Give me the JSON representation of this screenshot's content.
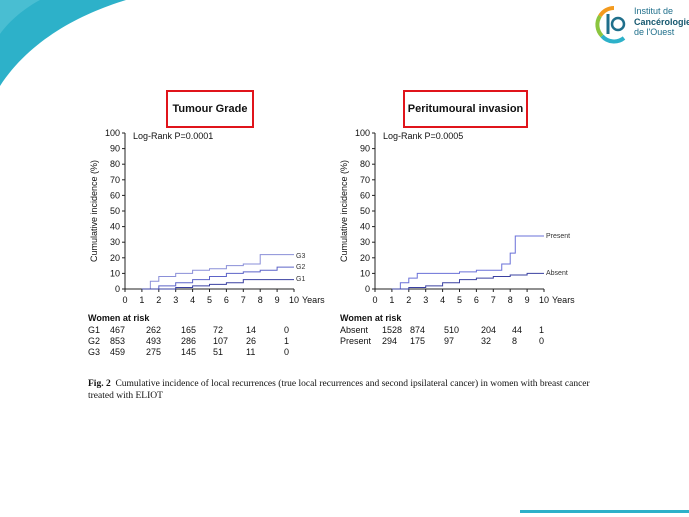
{
  "logo": {
    "lines": [
      "Institut de",
      "Cancérologie",
      "de l'Ouest"
    ],
    "colors": [
      "#f39a1e",
      "#8bc53f",
      "#2db1c9",
      "#1f6f8b"
    ]
  },
  "panels": {
    "left": {
      "title": "Tumour Grade",
      "logrank": "Log-Rank  P=0.0001"
    },
    "right": {
      "title": "Peritumoural invasion",
      "logrank": "Log-Rank  P=0.0005"
    }
  },
  "chart_data": [
    {
      "type": "line",
      "title": "Tumour Grade",
      "annotation": "Log-Rank  P=0.0001",
      "xlabel": "Years",
      "ylabel": "Cumulative incidence (%)",
      "xlim": [
        0,
        10
      ],
      "ylim": [
        0,
        100
      ],
      "xticks": [
        0,
        1,
        2,
        3,
        4,
        5,
        6,
        7,
        8,
        9,
        10
      ],
      "yticks": [
        0,
        10,
        20,
        30,
        40,
        50,
        60,
        70,
        80,
        90,
        100
      ],
      "series": [
        {
          "name": "G3",
          "x": [
            1,
            1.5,
            2,
            3,
            4,
            5,
            6,
            7,
            8,
            10
          ],
          "y": [
            0,
            5,
            8,
            10,
            12,
            13,
            15,
            16,
            22,
            22
          ]
        },
        {
          "name": "G2",
          "x": [
            1,
            2,
            3,
            4,
            5,
            6,
            7,
            8,
            9,
            10
          ],
          "y": [
            0,
            2,
            4,
            6,
            8,
            10,
            11,
            12,
            14,
            14
          ]
        },
        {
          "name": "G1",
          "x": [
            1,
            2,
            3,
            4,
            5,
            6,
            7,
            8,
            10
          ],
          "y": [
            0,
            0,
            1,
            2,
            3,
            4,
            6,
            6,
            6
          ]
        }
      ],
      "risk_table": {
        "header": "Women at risk",
        "rows": [
          {
            "label": "G1",
            "values": [
              "467",
              "262",
              "165",
              "72",
              "14",
              "0"
            ]
          },
          {
            "label": "G2",
            "values": [
              "853",
              "493",
              "286",
              "107",
              "26",
              "1"
            ]
          },
          {
            "label": "G3",
            "values": [
              "459",
              "275",
              "145",
              "51",
              "11",
              "0"
            ]
          }
        ]
      }
    },
    {
      "type": "line",
      "title": "Peritumoural invasion",
      "annotation": "Log-Rank  P=0.0005",
      "xlabel": "Years",
      "ylabel": "Cumulative incidence (%)",
      "xlim": [
        0,
        10
      ],
      "ylim": [
        0,
        100
      ],
      "xticks": [
        0,
        1,
        2,
        3,
        4,
        5,
        6,
        7,
        8,
        9,
        10
      ],
      "yticks": [
        0,
        10,
        20,
        30,
        40,
        50,
        60,
        70,
        80,
        90,
        100
      ],
      "series": [
        {
          "name": "Present",
          "x": [
            1,
            1.5,
            2,
            2.5,
            3,
            4,
            5,
            6,
            7,
            7.5,
            8,
            8.3,
            10
          ],
          "y": [
            0,
            4,
            7,
            10,
            10,
            10,
            11,
            12,
            12,
            16,
            23,
            34,
            34
          ]
        },
        {
          "name": "Absent",
          "x": [
            1,
            2,
            3,
            4,
            5,
            6,
            7,
            8,
            9,
            10
          ],
          "y": [
            0,
            1,
            2,
            4,
            6,
            7,
            8,
            9,
            10,
            10
          ]
        }
      ],
      "risk_table": {
        "header": "Women at risk",
        "rows": [
          {
            "label": "Absent",
            "values": [
              "1528",
              "874",
              "510",
              "204",
              "44",
              "1"
            ]
          },
          {
            "label": "Present",
            "values": [
              "294",
              "175",
              "97",
              "32",
              "8",
              "0"
            ]
          }
        ]
      }
    }
  ],
  "caption": {
    "label": "Fig. 2",
    "text": "Cumulative incidence of local recurrences (true local recurrences and second ipsilateral cancer) in women with breast cancer treated with ELIOT"
  }
}
